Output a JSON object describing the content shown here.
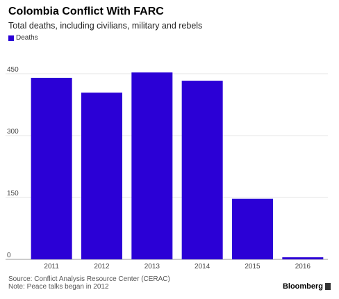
{
  "colors": {
    "bar": "#2b00d6",
    "grid": "#e6e6e6",
    "axis": "#999999"
  },
  "chart_data": {
    "type": "bar",
    "title": "Colombia Conflict With FARC",
    "subtitle": "Total deaths, including civilians, military and rebels",
    "categories": [
      "2011",
      "2012",
      "2013",
      "2014",
      "2015",
      "2016"
    ],
    "series": [
      {
        "name": "Deaths",
        "values": [
          440,
          404,
          453,
          433,
          147,
          5
        ]
      }
    ],
    "ylim": [
      0,
      450
    ],
    "yticks": [
      0,
      150,
      300,
      450
    ],
    "grid": true,
    "legend": "top-left"
  },
  "footer": {
    "source": "Source: Conflict Analysis Resource Center (CERAC)",
    "note": "Note: Peace talks began in 2012"
  },
  "brand": {
    "name": "Bloomberg",
    "icon": "bloomberg-logo-icon"
  }
}
